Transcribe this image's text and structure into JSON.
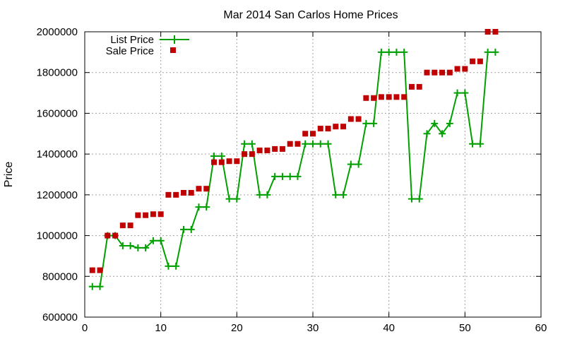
{
  "chart_data": {
    "type": "line",
    "title": "Mar 2014 San Carlos Home Prices",
    "xlabel": "",
    "ylabel": "Price",
    "xlim": [
      0,
      60
    ],
    "ylim": [
      600000,
      2000000
    ],
    "xticks": [
      0,
      10,
      20,
      30,
      40,
      50,
      60
    ],
    "yticks": [
      600000,
      800000,
      1000000,
      1200000,
      1400000,
      1600000,
      1800000,
      2000000
    ],
    "xtick_labels": [
      "0",
      "10",
      "20",
      "30",
      "40",
      "50",
      "60"
    ],
    "ytick_labels": [
      "600000",
      "800000",
      "1000000",
      "1200000",
      "1400000",
      "1600000",
      "1800000",
      "2000000"
    ],
    "grid": true,
    "legend_position": "top-left",
    "x": [
      1,
      2,
      3,
      4,
      5,
      6,
      7,
      8,
      9,
      10,
      11,
      12,
      13,
      14,
      15,
      16,
      17,
      18,
      19,
      20,
      21,
      22,
      23,
      24,
      25,
      26,
      27,
      28,
      29,
      30,
      31,
      32,
      33,
      34,
      35,
      36,
      37,
      38,
      39,
      40,
      41,
      42,
      43,
      44,
      45,
      46,
      47,
      48,
      49,
      50,
      51,
      52,
      53,
      54
    ],
    "series": [
      {
        "name": "List Price",
        "style": "linespoints",
        "color": "#00a000",
        "values": [
          750000,
          750000,
          1000000,
          1000000,
          950000,
          950000,
          940000,
          940000,
          975000,
          975000,
          850000,
          850000,
          1030000,
          1030000,
          1140000,
          1140000,
          1390000,
          1390000,
          1180000,
          1180000,
          1450000,
          1450000,
          1200000,
          1200000,
          1290000,
          1290000,
          1290000,
          1290000,
          1450000,
          1450000,
          1450000,
          1450000,
          1200000,
          1200000,
          1350000,
          1350000,
          1550000,
          1550000,
          1900000,
          1900000,
          1900000,
          1900000,
          1180000,
          1180000,
          1500000,
          1550000,
          1500000,
          1550000,
          1700000,
          1700000,
          1450000,
          1450000,
          1900000,
          1900000
        ]
      },
      {
        "name": "Sale Price",
        "style": "points",
        "color": "#c00000",
        "values": [
          830000,
          830000,
          1000000,
          1000000,
          1050000,
          1050000,
          1100000,
          1100000,
          1105000,
          1105000,
          1200000,
          1200000,
          1210000,
          1210000,
          1230000,
          1230000,
          1360000,
          1360000,
          1365000,
          1365000,
          1400000,
          1400000,
          1418000,
          1418000,
          1425000,
          1425000,
          1450000,
          1450000,
          1500000,
          1500000,
          1525000,
          1525000,
          1535000,
          1535000,
          1572000,
          1572000,
          1675000,
          1675000,
          1680000,
          1680000,
          1680000,
          1680000,
          1730000,
          1730000,
          1800000,
          1800000,
          1800000,
          1800000,
          1818000,
          1818000,
          1855000,
          1855000,
          2000000,
          2000000
        ]
      }
    ]
  }
}
